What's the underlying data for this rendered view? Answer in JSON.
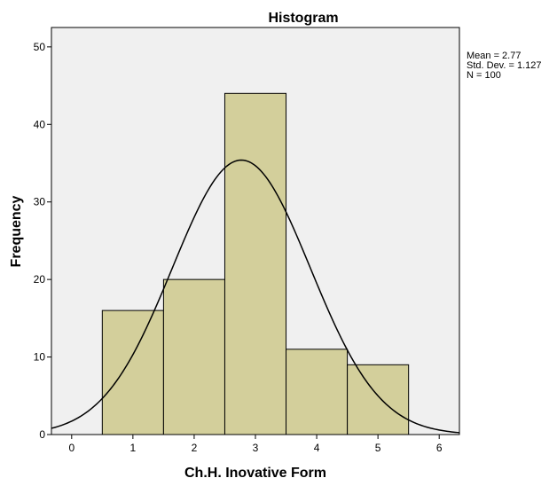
{
  "chart_data": {
    "type": "bar",
    "title": "Histogram",
    "xlabel": "Ch.H. Inovative Form",
    "ylabel": "Frequency",
    "x_ticks": [
      0,
      1,
      2,
      3,
      4,
      5,
      6
    ],
    "y_ticks": [
      0,
      10,
      20,
      30,
      40,
      50
    ],
    "xlim": [
      -0.33,
      6.33
    ],
    "ylim": [
      0,
      52.5
    ],
    "bins": [
      {
        "x0": 0.5,
        "x1": 1.5,
        "value": 16
      },
      {
        "x0": 1.5,
        "x1": 2.5,
        "value": 20
      },
      {
        "x0": 2.5,
        "x1": 3.5,
        "value": 44
      },
      {
        "x0": 3.5,
        "x1": 4.5,
        "value": 11
      },
      {
        "x0": 4.5,
        "x1": 5.5,
        "value": 9
      }
    ],
    "normal_curve": {
      "mean": 2.77,
      "std": 1.127,
      "n": 100,
      "bin_width": 1
    },
    "stats_text": [
      "Mean = 2.77",
      "Std. Dev. = 1.127",
      "N = 100"
    ],
    "colors": {
      "bar_fill": "#d3cf9b",
      "plot_bg": "#f0f0f0",
      "curve": "#000000"
    },
    "grid": false
  }
}
